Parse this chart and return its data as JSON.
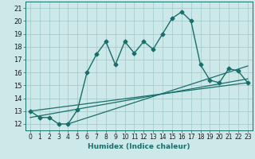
{
  "title": "",
  "xlabel": "Humidex (Indice chaleur)",
  "ylabel": "",
  "bg_color": "#cce8e8",
  "line_color": "#1a6e6a",
  "xlim": [
    -0.5,
    23.5
  ],
  "ylim": [
    11.5,
    21.5
  ],
  "xticks": [
    0,
    1,
    2,
    3,
    4,
    5,
    6,
    7,
    8,
    9,
    10,
    11,
    12,
    13,
    14,
    15,
    16,
    17,
    18,
    19,
    20,
    21,
    22,
    23
  ],
  "yticks": [
    12,
    13,
    14,
    15,
    16,
    17,
    18,
    19,
    20,
    21
  ],
  "main_x": [
    0,
    1,
    2,
    3,
    4,
    5,
    6,
    7,
    8,
    9,
    10,
    11,
    12,
    13,
    14,
    15,
    16,
    17,
    18,
    19,
    20,
    21,
    22,
    23
  ],
  "main_y": [
    13.0,
    12.5,
    12.5,
    12.0,
    12.0,
    13.1,
    16.0,
    17.4,
    18.4,
    16.6,
    18.4,
    17.5,
    18.4,
    17.8,
    19.0,
    20.2,
    20.7,
    20.0,
    16.6,
    15.4,
    15.2,
    16.3,
    16.1,
    15.2
  ],
  "line2_x": [
    0,
    23
  ],
  "line2_y": [
    13.0,
    15.2
  ],
  "line3_x": [
    0,
    23
  ],
  "line3_y": [
    12.5,
    15.5
  ],
  "line4_x": [
    4,
    23
  ],
  "line4_y": [
    12.0,
    16.5
  ],
  "grid_color": "#a0c8c8",
  "marker_size": 2.5
}
